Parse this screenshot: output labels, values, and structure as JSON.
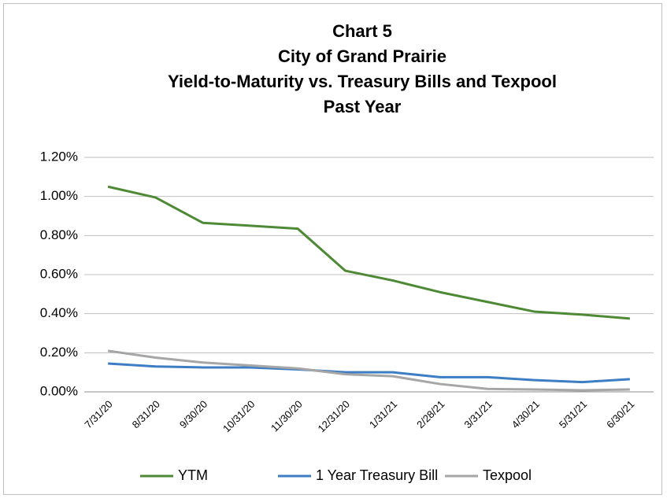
{
  "chart_data": {
    "type": "line",
    "title": [
      "Chart 5",
      "City of Grand Prairie",
      "Yield-to-Maturity vs. Treasury Bills and Texpool",
      "Past Year"
    ],
    "categories": [
      "7/31/20",
      "8/31/20",
      "9/30/20",
      "10/31/20",
      "11/30/20",
      "12/31/20",
      "1/31/21",
      "2/28/21",
      "3/31/21",
      "4/30/21",
      "5/31/21",
      "6/30/21"
    ],
    "series": [
      {
        "name": "YTM",
        "color": "#4e8a35",
        "values": [
          1.05,
          0.995,
          0.865,
          0.85,
          0.835,
          0.62,
          0.57,
          0.51,
          0.46,
          0.41,
          0.395,
          0.375
        ]
      },
      {
        "name": "1 Year Treasury Bill",
        "color": "#3c7dc4",
        "values": [
          0.145,
          0.13,
          0.125,
          0.125,
          0.115,
          0.1,
          0.1,
          0.075,
          0.075,
          0.06,
          0.05,
          0.065
        ]
      },
      {
        "name": "Texpool",
        "color": "#a6a6a6",
        "values": [
          0.21,
          0.175,
          0.15,
          0.135,
          0.12,
          0.09,
          0.08,
          0.04,
          0.015,
          0.012,
          0.008,
          0.012
        ]
      }
    ],
    "ylim": [
      0,
      1.2
    ],
    "yticks": [
      {
        "value": 0,
        "label": "0.00%"
      },
      {
        "value": 0.2,
        "label": "0.20%"
      },
      {
        "value": 0.4,
        "label": "0.40%"
      },
      {
        "value": 0.6,
        "label": "0.60%"
      },
      {
        "value": 0.8,
        "label": "0.80%"
      },
      {
        "value": 1.0,
        "label": "1.00%"
      },
      {
        "value": 1.2,
        "label": "1.20%"
      }
    ],
    "grid": true,
    "legend": "bottom"
  }
}
